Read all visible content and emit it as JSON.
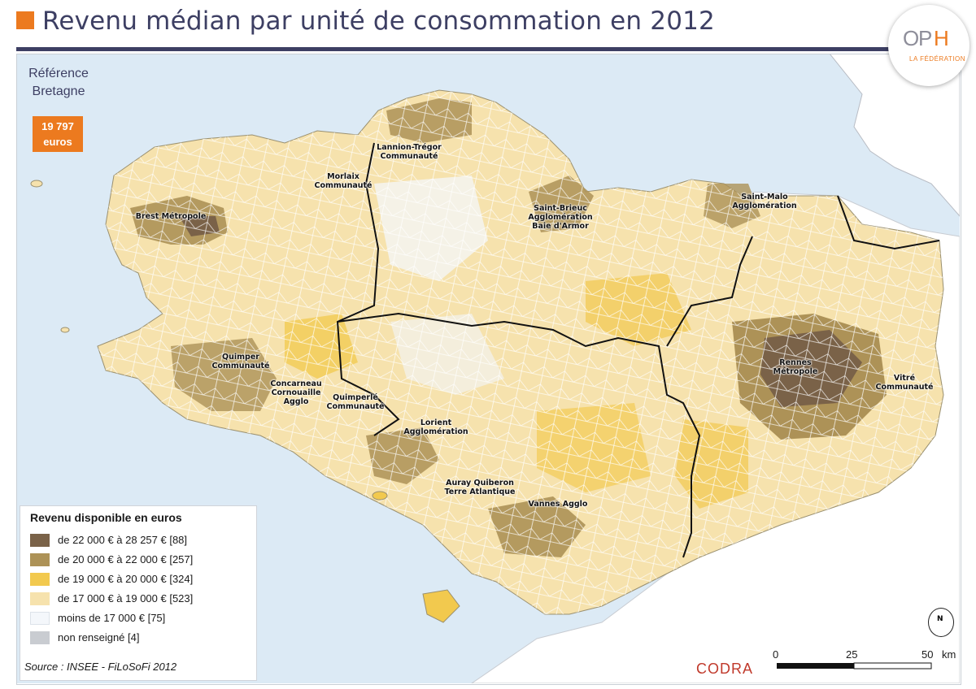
{
  "header": {
    "title": "Revenu médian par unité de consommation en 2012"
  },
  "logo": {
    "o": "O",
    "p": "P",
    "h": "H",
    "subtitle": "LA FÉDÉRATION"
  },
  "reference": {
    "line1": "Référence",
    "line2": "Bretagne",
    "value": "19 797",
    "unit": "euros"
  },
  "legend": {
    "title": "Revenu disponible en euros",
    "items": [
      {
        "label": "de 22 000 € à 28 257 € [88]",
        "color": "#7a6248"
      },
      {
        "label": "de 20 000 € à 22 000 € [257]",
        "color": "#ad9257"
      },
      {
        "label": "de 19 000 € à 20 000 € [324]",
        "color": "#f2c94e"
      },
      {
        "label": "de 17 000 € à 19 000 € [523]",
        "color": "#f6e2ad"
      },
      {
        "label": "moins de 17 000 € [75]",
        "color": "#f4f7fb"
      },
      {
        "label": "non renseigné [4]",
        "color": "#c9ccd1"
      }
    ]
  },
  "labels": [
    {
      "text": "Lannion-Trégor\nCommunauté"
    },
    {
      "text": "Morlaix\nCommunauté"
    },
    {
      "text": "Brest Métropole"
    },
    {
      "text": "Saint-Brieuc\nAgglomération\nBaie d'Armor"
    },
    {
      "text": "Saint-Malo\nAgglomération"
    },
    {
      "text": "Quimper\nCommunauté"
    },
    {
      "text": "Concarneau\nCornouaille\nAgglo"
    },
    {
      "text": "Quimperlé\nCommunauté"
    },
    {
      "text": "Lorient\nAgglomération"
    },
    {
      "text": "Rennes\nMétropole"
    },
    {
      "text": "Vitré\nCommunauté"
    },
    {
      "text": "Auray Quiberon\nTerre Atlantique"
    },
    {
      "text": "Vannes Agglo"
    }
  ],
  "colors": {
    "sea": "#dceaf5",
    "land_outside": "#ffffff",
    "title": "#3d3f63",
    "accent": "#ec7a1f"
  },
  "source": "Source : INSEE - FiLoSoFi 2012",
  "credit": "CODRA",
  "scale": {
    "ticks": [
      "0",
      "25",
      "50"
    ],
    "unit": "km"
  },
  "north_label": "N"
}
